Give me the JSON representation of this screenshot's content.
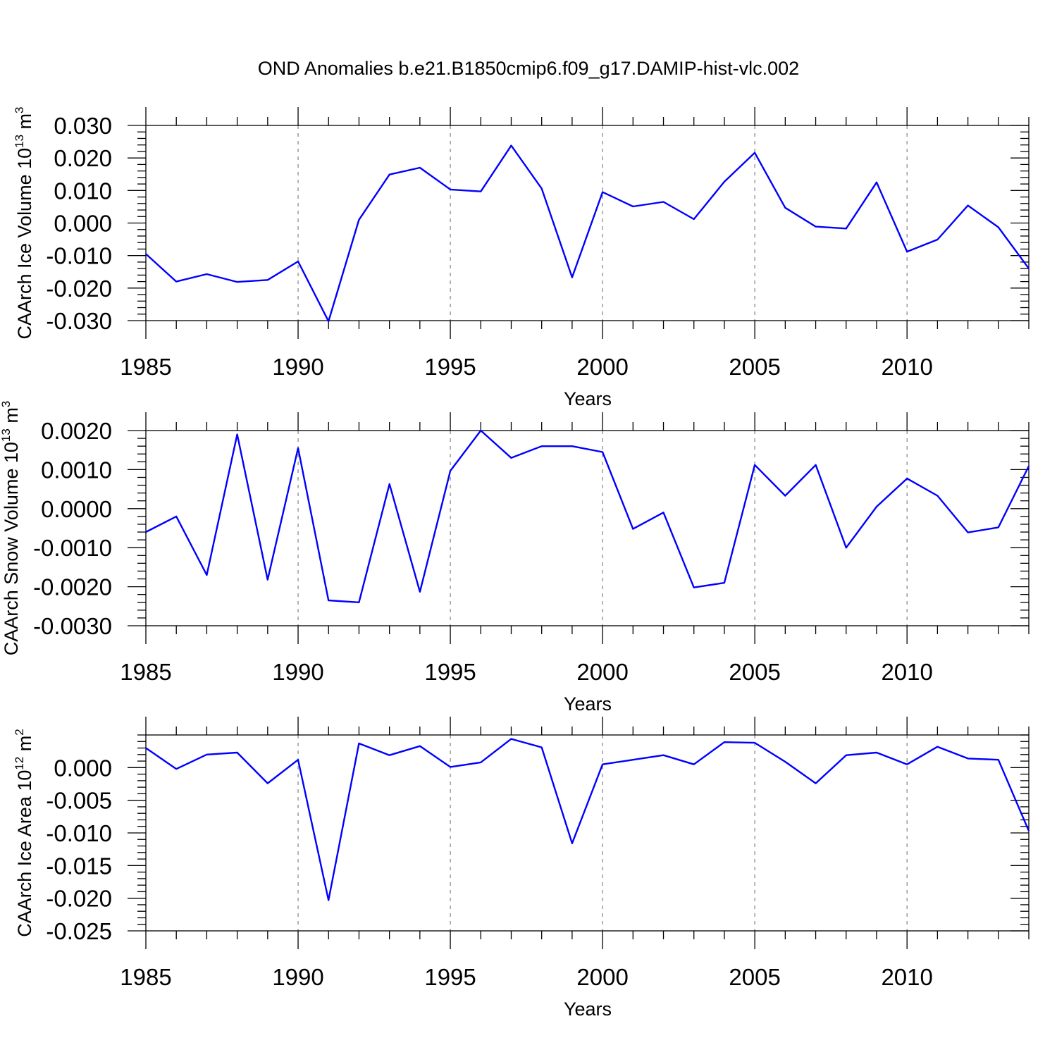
{
  "figure_title": "OND Anomalies b.e21.B1850cmip6.f09_g17.DAMIP-hist-vlc.002",
  "line_color": "#0000FF",
  "chart_data": [
    {
      "type": "line",
      "ylabel_main": "CAArch Ice Volume 10",
      "ylabel_exp": "13",
      "ylabel_unit": "m",
      "ylabel_unit_exp": "3",
      "xlabel": "Years",
      "xlim": [
        1985,
        2014
      ],
      "ylim": [
        -0.03,
        0.03
      ],
      "yticks": [
        -0.03,
        -0.02,
        -0.01,
        0.0,
        0.01,
        0.02,
        0.03
      ],
      "ytick_labels": [
        "-0.030",
        "-0.020",
        "-0.010",
        "0.000",
        "0.010",
        "0.020",
        "0.030"
      ],
      "xticks": [
        1985,
        1990,
        1995,
        2000,
        2005,
        2010
      ],
      "xtick_labels": [
        "1985",
        "1990",
        "1995",
        "2000",
        "2005",
        "2010"
      ],
      "series": [
        {
          "name": "CAArch Ice Volume",
          "x": [
            1985,
            1986,
            1987,
            1988,
            1989,
            1990,
            1991,
            1992,
            1993,
            1994,
            1995,
            1996,
            1997,
            1998,
            1999,
            2000,
            2001,
            2002,
            2003,
            2004,
            2005,
            2006,
            2007,
            2008,
            2009,
            2010,
            2011,
            2012,
            2013,
            2014
          ],
          "values": [
            -0.0095,
            -0.018,
            -0.0157,
            -0.0181,
            -0.0175,
            -0.0118,
            -0.0302,
            0.001,
            0.0149,
            0.017,
            0.0103,
            0.0097,
            0.0238,
            0.0106,
            -0.0167,
            0.0095,
            0.0051,
            0.0065,
            0.0012,
            0.0127,
            0.0216,
            0.0047,
            -0.0011,
            -0.0017,
            0.0125,
            -0.0088,
            -0.0051,
            0.0054,
            -0.0013,
            -0.014
          ]
        }
      ]
    },
    {
      "type": "line",
      "ylabel_main": "CAArch Snow Volume 10",
      "ylabel_exp": "13",
      "ylabel_unit": "m",
      "ylabel_unit_exp": "3",
      "xlabel": "Years",
      "xlim": [
        1985,
        2014
      ],
      "ylim": [
        -0.003,
        0.002
      ],
      "yticks": [
        -0.003,
        -0.002,
        -0.001,
        0.0,
        0.001,
        0.002
      ],
      "ytick_labels": [
        "-0.0030",
        "-0.0020",
        "-0.0010",
        "0.0000",
        "0.0010",
        "0.0020"
      ],
      "xticks": [
        1985,
        1990,
        1995,
        2000,
        2005,
        2010
      ],
      "xtick_labels": [
        "1985",
        "1990",
        "1995",
        "2000",
        "2005",
        "2010"
      ],
      "series": [
        {
          "name": "CAArch Snow Volume",
          "x": [
            1985,
            1986,
            1987,
            1988,
            1989,
            1990,
            1991,
            1992,
            1993,
            1994,
            1995,
            1996,
            1997,
            1998,
            1999,
            2000,
            2001,
            2002,
            2003,
            2004,
            2005,
            2006,
            2007,
            2008,
            2009,
            2010,
            2011,
            2012,
            2013,
            2014
          ],
          "values": [
            -0.0006,
            -0.0002,
            -0.0017,
            0.0019,
            -0.00182,
            0.00155,
            -0.00235,
            -0.0024,
            0.00063,
            -0.00213,
            0.00097,
            0.002,
            0.0013,
            0.0016,
            0.0016,
            0.00145,
            -0.00052,
            -0.0001,
            -0.00202,
            -0.0019,
            0.00112,
            0.00033,
            0.00112,
            -0.001,
            5e-05,
            0.00077,
            0.00033,
            -0.00061,
            -0.00048,
            0.00109
          ]
        }
      ]
    },
    {
      "type": "line",
      "ylabel_main": "CAArch Ice Area 10",
      "ylabel_exp": "12",
      "ylabel_unit": "m",
      "ylabel_unit_exp": "2",
      "xlabel": "Years",
      "xlim": [
        1985,
        2014
      ],
      "ylim": [
        -0.025,
        0.005
      ],
      "yticks": [
        -0.025,
        -0.02,
        -0.015,
        -0.01,
        -0.005,
        0.0
      ],
      "ytick_labels": [
        "-0.025",
        "-0.020",
        "-0.015",
        "-0.010",
        "-0.005",
        "0.000"
      ],
      "xticks": [
        1985,
        1990,
        1995,
        2000,
        2005,
        2010
      ],
      "xtick_labels": [
        "1985",
        "1990",
        "1995",
        "2000",
        "2005",
        "2010"
      ],
      "series": [
        {
          "name": "CAArch Ice Area",
          "x": [
            1985,
            1986,
            1987,
            1988,
            1989,
            1990,
            1991,
            1992,
            1993,
            1994,
            1995,
            1996,
            1997,
            1998,
            1999,
            2000,
            2001,
            2002,
            2003,
            2004,
            2005,
            2006,
            2007,
            2008,
            2009,
            2010,
            2011,
            2012,
            2013,
            2014
          ],
          "values": [
            0.003,
            -0.0002,
            0.002,
            0.0023,
            -0.0024,
            0.0012,
            -0.0203,
            0.0037,
            0.0019,
            0.0033,
            0.0001,
            0.0008,
            0.0044,
            0.0031,
            -0.0116,
            0.0005,
            0.0012,
            0.0019,
            0.0005,
            0.0039,
            0.0038,
            0.0009,
            -0.0024,
            0.0019,
            0.0023,
            0.0005,
            0.0032,
            0.0014,
            0.0012,
            -0.0097
          ]
        }
      ]
    }
  ]
}
